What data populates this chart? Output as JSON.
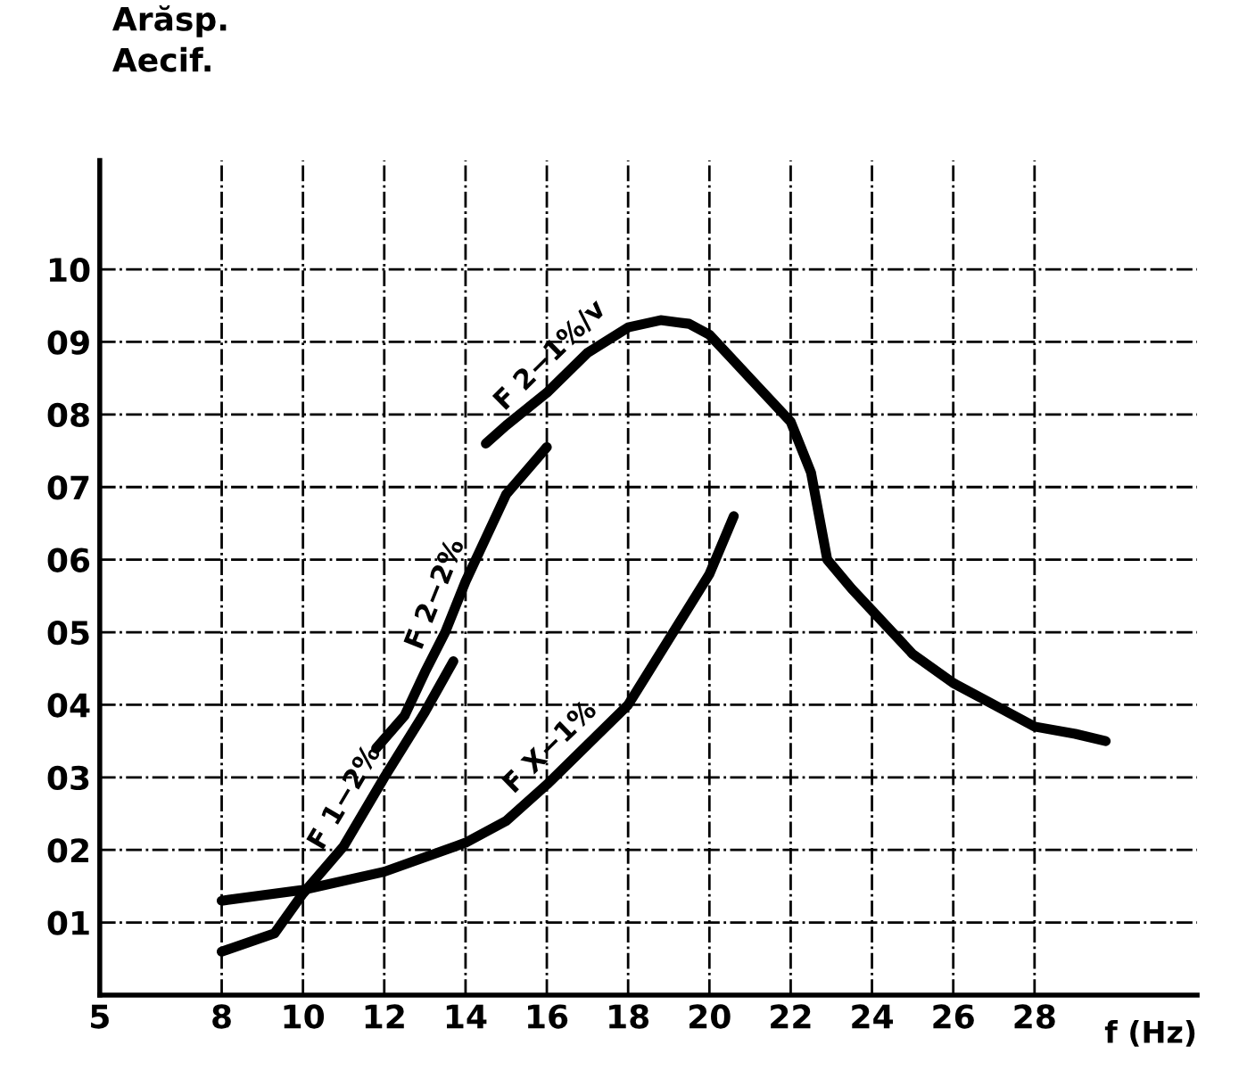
{
  "chart_data": {
    "type": "line",
    "xlabel": "f (Hz)",
    "ylabel": "Arăsp.\nAecif.",
    "xlim": [
      5,
      32
    ],
    "ylim": [
      0,
      11.5
    ],
    "xticks": [
      5,
      8,
      10,
      12,
      14,
      16,
      18,
      20,
      22,
      24,
      26,
      28
    ],
    "yticks": [
      {
        "value": 1,
        "label": "01"
      },
      {
        "value": 2,
        "label": "02"
      },
      {
        "value": 3,
        "label": "03"
      },
      {
        "value": 4,
        "label": "04"
      },
      {
        "value": 5,
        "label": "05"
      },
      {
        "value": 6,
        "label": "06"
      },
      {
        "value": 7,
        "label": "07"
      },
      {
        "value": 8,
        "label": "08"
      },
      {
        "value": 9,
        "label": "09"
      },
      10
    ],
    "grid": true,
    "marker": "none",
    "line_style": "solid",
    "series": [
      {
        "name": "F 2−1%/v",
        "color": "#000000",
        "x": [
          14.5,
          15,
          16,
          17,
          18,
          18.8,
          19.5,
          20,
          20.5,
          21,
          22,
          22.5,
          22.9,
          23.5,
          24,
          25,
          26,
          27,
          28,
          29,
          29.75
        ],
        "values": [
          7.6,
          7.85,
          8.3,
          8.85,
          9.2,
          9.3,
          9.25,
          9.1,
          8.8,
          8.5,
          7.9,
          7.2,
          6.0,
          5.6,
          5.3,
          4.7,
          4.3,
          4.0,
          3.7,
          3.6,
          3.5
        ]
      },
      {
        "name": "F 2−2%",
        "color": "#000000",
        "x": [
          11.8,
          12.5,
          13,
          13.5,
          14,
          14.5,
          15,
          16
        ],
        "values": [
          3.4,
          3.85,
          4.45,
          5.0,
          5.7,
          6.3,
          6.9,
          7.55
        ]
      },
      {
        "name": "F 1−2%",
        "color": "#000000",
        "x": [
          8,
          9.3,
          10,
          11,
          12,
          13,
          13.7
        ],
        "values": [
          0.6,
          0.85,
          1.4,
          2.05,
          3.0,
          3.9,
          4.6
        ]
      },
      {
        "name": "F X−1%",
        "color": "#000000",
        "x": [
          8,
          10,
          12,
          14,
          15,
          16,
          17,
          18,
          19,
          20,
          20.6
        ],
        "values": [
          1.3,
          1.45,
          1.7,
          2.1,
          2.4,
          2.9,
          3.45,
          4.0,
          4.9,
          5.8,
          6.6
        ]
      }
    ]
  }
}
